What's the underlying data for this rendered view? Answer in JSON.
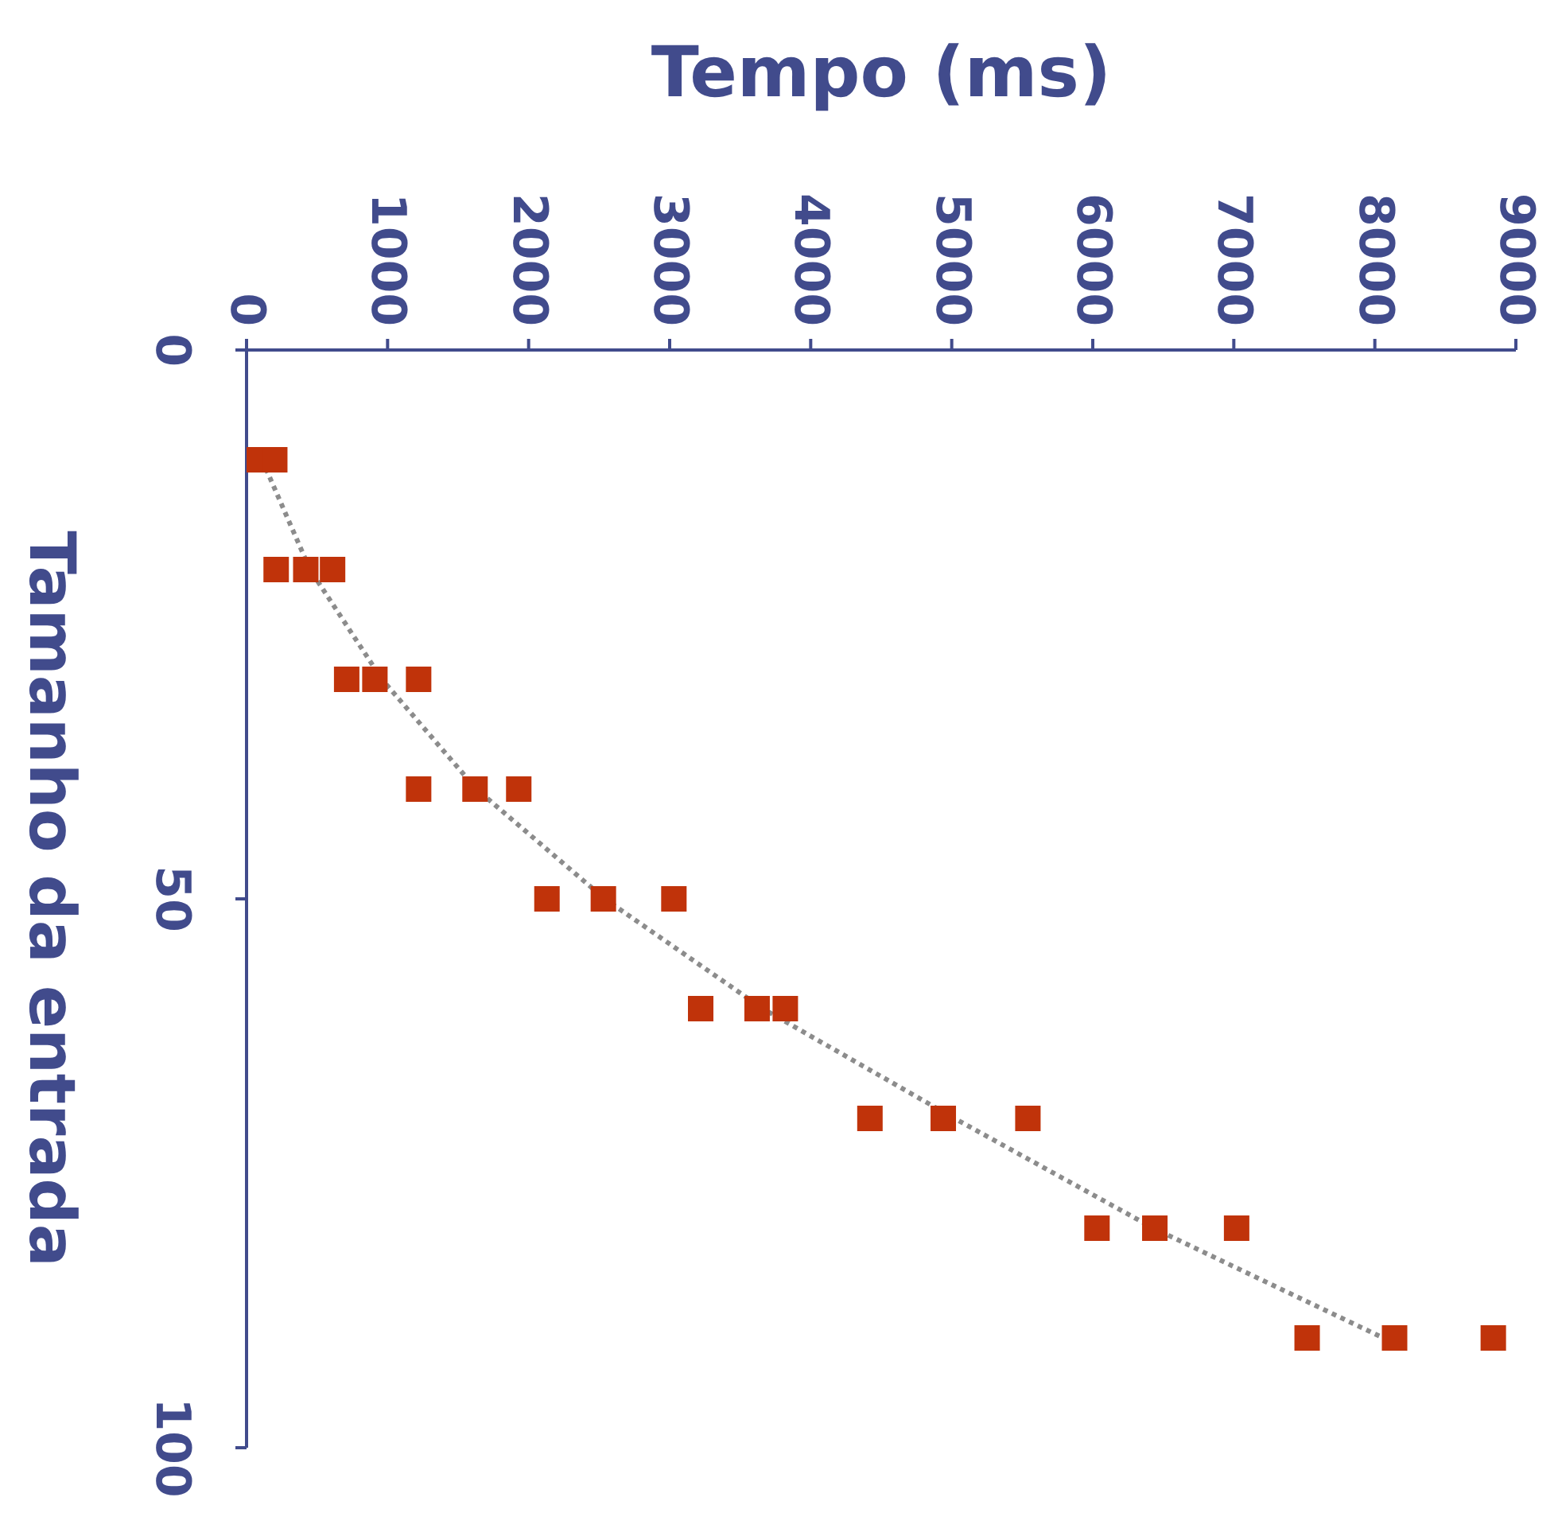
{
  "chart_data": {
    "type": "scatter",
    "xlabel": "Tempo (ms)",
    "ylabel": "Tamanho da entrada",
    "xlim": [
      0,
      9000
    ],
    "xticks": [
      0,
      1000,
      2000,
      3000,
      4000,
      5000,
      6000,
      7000,
      8000,
      9000
    ],
    "ylim": [
      100,
      0
    ],
    "yticks": [
      0,
      50,
      100
    ],
    "marker": "square",
    "series": [
      {
        "color": "#c0330a",
        "x": [
          60,
          200,
          210,
          420,
          610,
          710,
          910,
          1220,
          1220,
          1620,
          1930,
          2130,
          2530,
          3030,
          3220,
          3620,
          3820,
          4420,
          4940,
          5540,
          6030,
          6440,
          7020,
          7520,
          8140,
          8840
        ],
        "values": [
          10,
          10,
          20,
          20,
          20,
          30,
          30,
          30,
          40,
          40,
          40,
          50,
          50,
          50,
          60,
          60,
          60,
          70,
          70,
          70,
          80,
          80,
          80,
          90,
          90,
          90
        ]
      },
      {
        "type": "line",
        "color": "#8c8c8c",
        "line_style": "dotted",
        "marker": "none",
        "x": [
          110,
          450,
          960,
          1630,
          2540,
          3660,
          5020,
          6430,
          8060
        ],
        "values": [
          10,
          20,
          30,
          40,
          50,
          60,
          70,
          80,
          90
        ]
      }
    ]
  }
}
